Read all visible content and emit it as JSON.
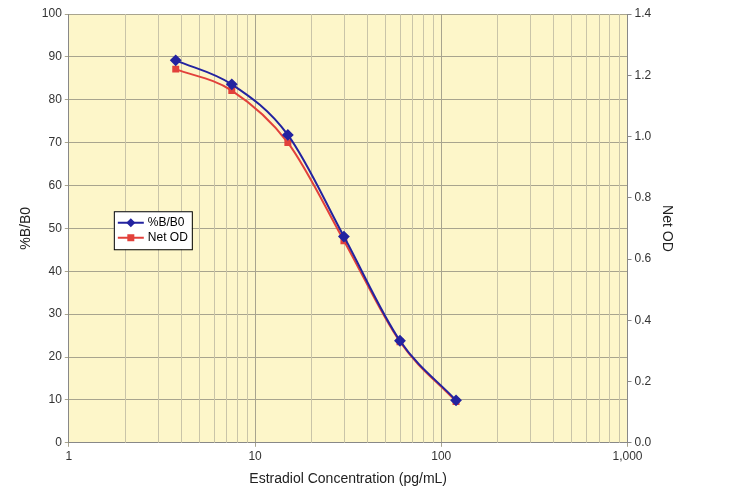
{
  "chart_data": {
    "type": "line",
    "x": [
      3.75,
      7.5,
      15,
      30,
      60,
      120
    ],
    "series": [
      {
        "name": "%B/B0",
        "color": "#2323a0",
        "marker": "diamond",
        "line_style": "solid",
        "values": [
          89.2,
          83.6,
          71.8,
          48.1,
          23.8,
          9.9
        ]
      },
      {
        "name": "Net OD",
        "color": "#e2413b",
        "marker": "square",
        "line_style": "solid",
        "axis": "y2",
        "values": [
          1.22,
          1.15,
          0.98,
          0.66,
          0.33,
          0.135
        ]
      }
    ],
    "xlabel": "Estradiol Concentration (pg/mL)",
    "ylabel": "%B/B0",
    "y2label": "Net OD",
    "xlim": [
      1,
      1000
    ],
    "xticks": [
      1,
      10,
      100,
      {
        "value": 1000,
        "label": "1,000"
      }
    ],
    "ylim": [
      0,
      100
    ],
    "yticks": [
      0,
      10,
      20,
      30,
      40,
      50,
      60,
      70,
      80,
      90,
      100
    ],
    "y2lim": [
      0,
      1.4
    ],
    "y2ticks": [
      {
        "value": 0,
        "label": "0.0"
      },
      0.2,
      0.4,
      0.6,
      0.8,
      {
        "value": 1,
        "label": "1.0"
      },
      1.2,
      1.4
    ],
    "log": "x",
    "grid": true,
    "legend": "left"
  }
}
